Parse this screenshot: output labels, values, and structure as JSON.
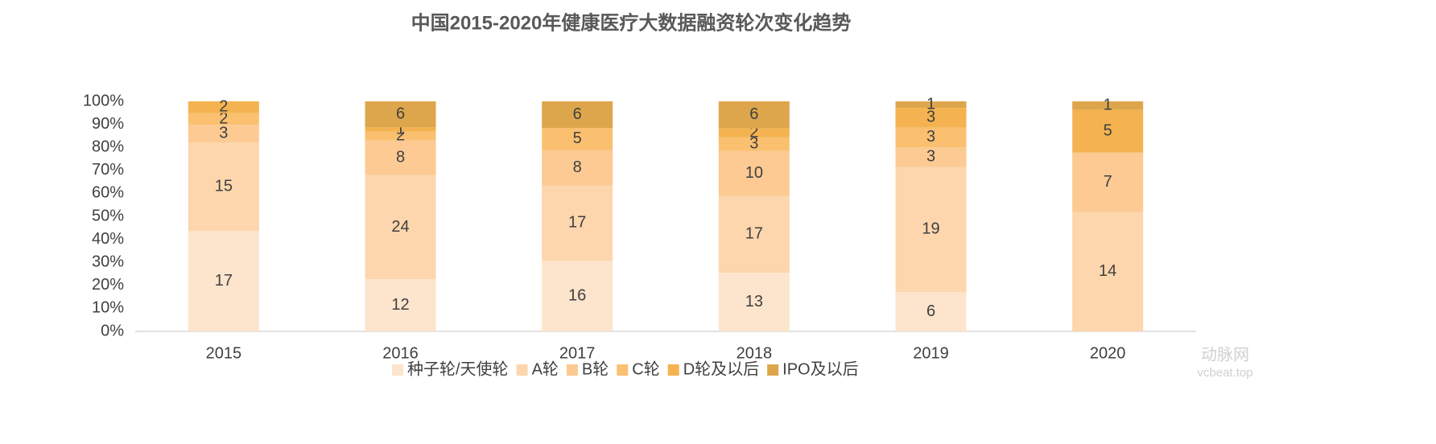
{
  "chart_data": {
    "type": "bar",
    "stack": "percent",
    "title": "中国2015-2020年健康医疗大数据融资轮次变化趋势",
    "categories": [
      "2015",
      "2016",
      "2017",
      "2018",
      "2019",
      "2020"
    ],
    "series": [
      {
        "name": "种子轮/天使轮",
        "color": "#fde4cc",
        "values": [
          17,
          12,
          16,
          13,
          6,
          null
        ]
      },
      {
        "name": "A轮",
        "color": "#fdd6ad",
        "values": [
          15,
          24,
          17,
          17,
          19,
          14
        ]
      },
      {
        "name": "B轮",
        "color": "#fcca92",
        "values": [
          3,
          8,
          8,
          10,
          3,
          7
        ]
      },
      {
        "name": "C轮",
        "color": "#fac070",
        "values": [
          2,
          2,
          5,
          3,
          3,
          null
        ]
      },
      {
        "name": "D轮及以后",
        "color": "#f4b350",
        "values": [
          2,
          1,
          null,
          2,
          3,
          5
        ]
      },
      {
        "name": "IPO及以后",
        "color": "#dea64c",
        "values": [
          null,
          6,
          6,
          6,
          1,
          1
        ]
      }
    ],
    "ylim": [
      0,
      100
    ],
    "yticks": [
      {
        "value": 0,
        "label": "0%"
      },
      {
        "value": 10,
        "label": "10%"
      },
      {
        "value": 20,
        "label": "20%"
      },
      {
        "value": 30,
        "label": "30%"
      },
      {
        "value": 40,
        "label": "40%"
      },
      {
        "value": 50,
        "label": "50%"
      },
      {
        "value": 60,
        "label": "60%"
      },
      {
        "value": 70,
        "label": "70%"
      },
      {
        "value": 80,
        "label": "80%"
      },
      {
        "value": 90,
        "label": "90%"
      },
      {
        "value": 100,
        "label": "100%"
      }
    ],
    "legend": "bottom",
    "watermark": [
      "动脉网",
      "vcbeat.top"
    ]
  }
}
